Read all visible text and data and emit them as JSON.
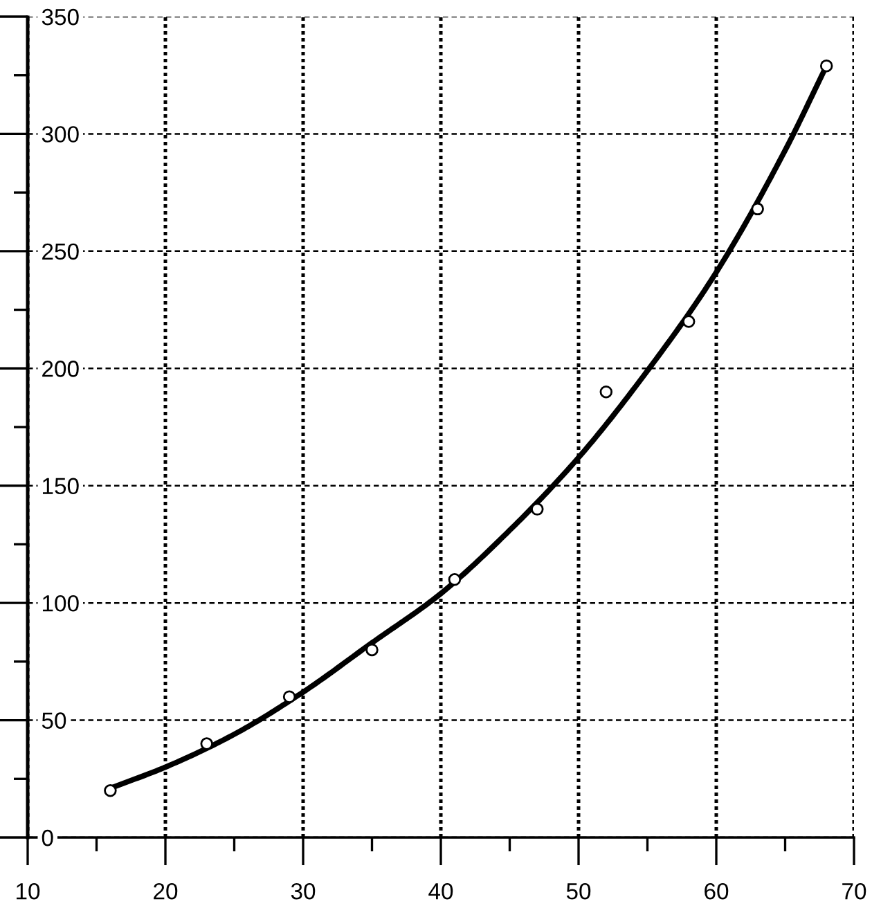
{
  "chart_data": {
    "type": "scatter",
    "x": [
      16,
      23,
      29,
      35,
      41,
      47,
      52,
      58,
      63,
      68
    ],
    "xlim": [
      10,
      70
    ],
    "xticks": [
      10,
      {
        "value": 15,
        "label": null
      },
      20,
      {
        "value": 25,
        "label": null
      },
      30,
      {
        "value": 35,
        "label": null
      },
      40,
      {
        "value": 45,
        "label": null
      },
      50,
      {
        "value": 55,
        "label": null
      },
      60,
      {
        "value": 65,
        "label": null
      },
      70
    ],
    "ylim": [
      0,
      350
    ],
    "yticks": [
      0,
      {
        "value": 25,
        "label": null
      },
      50,
      {
        "value": 75,
        "label": null
      },
      100,
      {
        "value": 125,
        "label": null
      },
      150,
      {
        "value": 175,
        "label": null
      },
      200,
      {
        "value": 225,
        "label": null
      },
      250,
      {
        "value": 275,
        "label": null
      },
      300,
      {
        "value": 325,
        "label": null
      },
      350
    ],
    "grid": true,
    "series": [
      {
        "color": "#000000",
        "marker": "circle",
        "values": [
          20,
          40,
          60,
          80,
          110,
          140,
          190,
          220,
          268,
          329
        ]
      },
      {
        "type": "line",
        "color": "#000000",
        "marker": "none",
        "line_style": "solid",
        "x": [
          16,
          20,
          25,
          30,
          35,
          40,
          45,
          50,
          55,
          60,
          65,
          68
        ],
        "values": [
          21,
          30,
          44,
          62,
          83,
          104,
          131,
          162,
          199,
          241,
          293,
          329
        ]
      }
    ]
  }
}
